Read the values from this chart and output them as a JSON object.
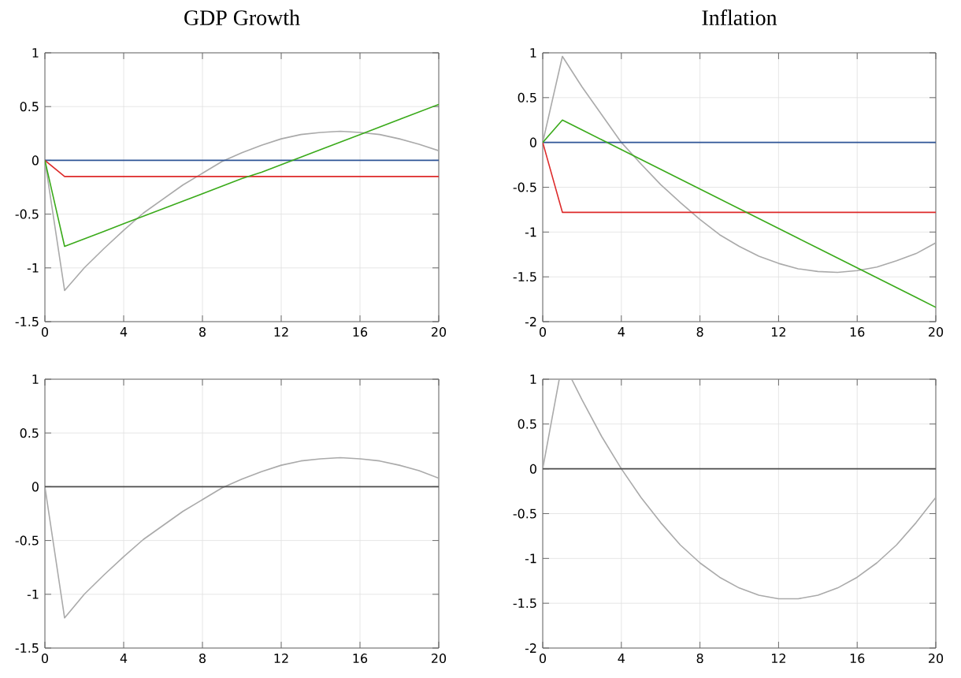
{
  "chart_data": [
    {
      "type": "line",
      "title": "GDP Growth",
      "x": [
        0,
        1,
        2,
        3,
        4,
        5,
        6,
        7,
        8,
        9,
        10,
        11,
        12,
        13,
        14,
        15,
        16,
        17,
        18,
        19,
        20
      ],
      "xlim": [
        0,
        20
      ],
      "xticks": [
        0,
        4,
        8,
        12,
        16,
        20
      ],
      "ylim": [
        -1.5,
        1
      ],
      "yticks": [
        -1.5,
        -1,
        -0.5,
        0,
        0.5,
        1
      ],
      "grid": true,
      "series": [
        {
          "color": "#aaaaaa",
          "values": [
            0,
            -1.21,
            -1.0,
            -0.82,
            -0.65,
            -0.49,
            -0.36,
            -0.23,
            -0.12,
            -0.01,
            0.07,
            0.14,
            0.2,
            0.24,
            0.26,
            0.27,
            0.26,
            0.24,
            0.2,
            0.15,
            0.09
          ]
        },
        {
          "color": "#2f5597",
          "values": [
            0,
            0,
            0,
            0,
            0,
            0,
            0,
            0,
            0,
            0,
            0,
            0,
            0,
            0,
            0,
            0,
            0,
            0,
            0,
            0,
            0
          ]
        },
        {
          "color": "#dd2a2a",
          "values": [
            0,
            -0.15,
            -0.15,
            -0.15,
            -0.15,
            -0.15,
            -0.15,
            -0.15,
            -0.15,
            -0.15,
            -0.15,
            -0.15,
            -0.15,
            -0.15,
            -0.15,
            -0.15,
            -0.15,
            -0.15,
            -0.15,
            -0.15,
            -0.15
          ]
        },
        {
          "color": "#3aaa1a",
          "values": [
            0,
            -0.8,
            -0.73,
            -0.66,
            -0.59,
            -0.52,
            -0.45,
            -0.38,
            -0.31,
            -0.24,
            -0.17,
            -0.11,
            -0.04,
            0.03,
            0.1,
            0.17,
            0.24,
            0.31,
            0.38,
            0.45,
            0.52
          ]
        }
      ]
    },
    {
      "type": "line",
      "title": "Inflation",
      "x": [
        0,
        1,
        2,
        3,
        4,
        5,
        6,
        7,
        8,
        9,
        10,
        11,
        12,
        13,
        14,
        15,
        16,
        17,
        18,
        19,
        20
      ],
      "xlim": [
        0,
        20
      ],
      "xticks": [
        0,
        4,
        8,
        12,
        16,
        20
      ],
      "ylim": [
        -2,
        1
      ],
      "yticks": [
        -2,
        -1.5,
        -1,
        -0.5,
        0,
        0.5,
        1
      ],
      "grid": true,
      "series": [
        {
          "color": "#aaaaaa",
          "values": [
            0,
            0.96,
            0.62,
            0.31,
            0.0,
            -0.24,
            -0.47,
            -0.67,
            -0.86,
            -1.03,
            -1.16,
            -1.27,
            -1.35,
            -1.41,
            -1.44,
            -1.45,
            -1.43,
            -1.39,
            -1.32,
            -1.24,
            -1.12
          ]
        },
        {
          "color": "#2f5597",
          "values": [
            0,
            0,
            0,
            0,
            0,
            0,
            0,
            0,
            0,
            0,
            0,
            0,
            0,
            0,
            0,
            0,
            0,
            0,
            0,
            0,
            0
          ]
        },
        {
          "color": "#dd2a2a",
          "values": [
            0,
            -0.78,
            -0.78,
            -0.78,
            -0.78,
            -0.78,
            -0.78,
            -0.78,
            -0.78,
            -0.78,
            -0.78,
            -0.78,
            -0.78,
            -0.78,
            -0.78,
            -0.78,
            -0.78,
            -0.78,
            -0.78,
            -0.78,
            -0.78
          ]
        },
        {
          "color": "#3aaa1a",
          "values": [
            0,
            0.25,
            0.14,
            0.03,
            -0.08,
            -0.19,
            -0.3,
            -0.41,
            -0.52,
            -0.63,
            -0.74,
            -0.85,
            -0.96,
            -1.07,
            -1.18,
            -1.29,
            -1.4,
            -1.51,
            -1.62,
            -1.73,
            -1.84
          ]
        }
      ]
    },
    {
      "type": "line",
      "x": [
        0,
        1,
        2,
        3,
        4,
        5,
        6,
        7,
        8,
        9,
        10,
        11,
        12,
        13,
        14,
        15,
        16,
        17,
        18,
        19,
        20
      ],
      "xlim": [
        0,
        20
      ],
      "xticks": [
        0,
        4,
        8,
        12,
        16,
        20
      ],
      "ylim": [
        -1.5,
        1
      ],
      "yticks": [
        -1.5,
        -1,
        -0.5,
        0,
        0.5,
        1
      ],
      "grid": true,
      "series": [
        {
          "color": "#aaaaaa",
          "values": [
            0,
            -1.22,
            -1.0,
            -0.82,
            -0.65,
            -0.49,
            -0.36,
            -0.23,
            -0.12,
            -0.01,
            0.07,
            0.14,
            0.2,
            0.24,
            0.26,
            0.27,
            0.26,
            0.24,
            0.2,
            0.15,
            0.08
          ]
        },
        {
          "color": "#4c4c4c",
          "values": [
            0,
            0,
            0,
            0,
            0,
            0,
            0,
            0,
            0,
            0,
            0,
            0,
            0,
            0,
            0,
            0,
            0,
            0,
            0,
            0,
            0
          ]
        }
      ]
    },
    {
      "type": "line",
      "x": [
        0,
        1,
        2,
        3,
        4,
        5,
        6,
        7,
        8,
        9,
        10,
        11,
        12,
        13,
        14,
        15,
        16,
        17,
        18,
        19,
        20
      ],
      "xlim": [
        0,
        20
      ],
      "xticks": [
        0,
        4,
        8,
        12,
        16,
        20
      ],
      "ylim": [
        -2,
        1
      ],
      "yticks": [
        -2,
        -1.5,
        -1,
        -0.5,
        0,
        0.5,
        1
      ],
      "grid": true,
      "series": [
        {
          "color": "#aaaaaa",
          "x": [
            0,
            0.84,
            1.15,
            1.47,
            2,
            3,
            4,
            5,
            6,
            7,
            8,
            9,
            10,
            11,
            12,
            13,
            14,
            15,
            16,
            17,
            18,
            19,
            20
          ],
          "values": [
            0,
            1,
            null,
            1,
            0.77,
            0.36,
            0,
            -0.32,
            -0.6,
            -0.85,
            -1.05,
            -1.21,
            -1.33,
            -1.41,
            -1.45,
            -1.45,
            -1.41,
            -1.33,
            -1.21,
            -1.05,
            -0.85,
            -0.6,
            -0.32
          ]
        },
        {
          "color": "#4c4c4c",
          "values": [
            0,
            0,
            0,
            0,
            0,
            0,
            0,
            0,
            0,
            0,
            0,
            0,
            0,
            0,
            0,
            0,
            0,
            0,
            0,
            0,
            0
          ]
        }
      ]
    }
  ]
}
